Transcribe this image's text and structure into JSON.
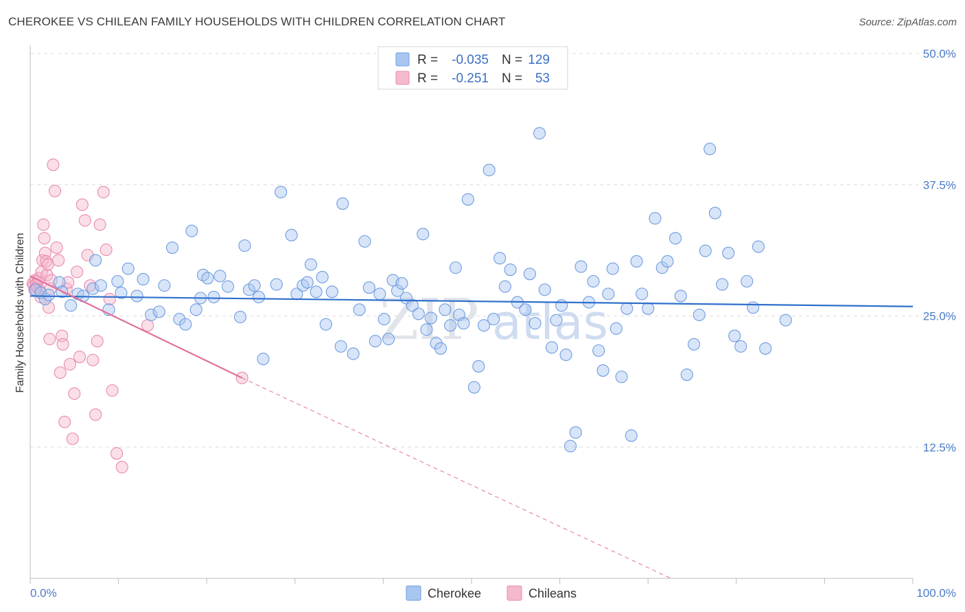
{
  "title": "CHEROKEE VS CHILEAN FAMILY HOUSEHOLDS WITH CHILDREN CORRELATION CHART",
  "source": "Source: ZipAtlas.com",
  "watermark": {
    "zip": "ZIP",
    "atlas": "atlas"
  },
  "chart_data": {
    "type": "scatter",
    "ylabel": "Family Households with Children",
    "xlabel": "",
    "xlim": [
      0,
      100
    ],
    "ylim": [
      0,
      50
    ],
    "x_tick_labels": {
      "min": "0.0%",
      "max": "100.0%"
    },
    "y_ticks": [
      {
        "value": 12.5,
        "label": "12.5%"
      },
      {
        "value": 25.0,
        "label": "25.0%"
      },
      {
        "value": 37.5,
        "label": "37.5%"
      },
      {
        "value": 50.0,
        "label": "50.0%"
      }
    ],
    "legend": {
      "r_label": "R =",
      "n_label": "N =",
      "entries": [
        {
          "name": "Cherokee",
          "r": "-0.035",
          "n": "129"
        },
        {
          "name": "Chileans",
          "r": "-0.251",
          "n": "53"
        }
      ]
    },
    "colors": {
      "cherokee_fill": "#a9c6f0",
      "cherokee_stroke": "#6f9ce0",
      "cherokee_line": "#2e6fcc",
      "chileans_fill": "#f5b9cf",
      "chileans_stroke": "#e98aad",
      "chileans_line": "#e0709a",
      "axis_label": "#4a7bc8",
      "grid": "#dcdcdc"
    },
    "series": [
      {
        "name": "Cherokee",
        "trend": {
          "x0": 0.0,
          "y0": 26.9,
          "x1": 100.0,
          "y1": 25.9
        },
        "points": [
          [
            0.6,
            27.5
          ],
          [
            1.2,
            27.2
          ],
          [
            1.7,
            26.6
          ],
          [
            2.1,
            27.0
          ],
          [
            3.3,
            28.2
          ],
          [
            3.6,
            27.3
          ],
          [
            4.6,
            26.0
          ],
          [
            5.4,
            27.1
          ],
          [
            6.0,
            26.9
          ],
          [
            7.1,
            27.6
          ],
          [
            7.4,
            30.3
          ],
          [
            8.0,
            27.9
          ],
          [
            8.9,
            25.6
          ],
          [
            9.9,
            28.3
          ],
          [
            10.3,
            27.2
          ],
          [
            11.1,
            29.5
          ],
          [
            12.1,
            26.9
          ],
          [
            12.8,
            28.5
          ],
          [
            13.7,
            25.1
          ],
          [
            14.6,
            25.4
          ],
          [
            15.2,
            27.9
          ],
          [
            16.1,
            31.5
          ],
          [
            16.9,
            24.7
          ],
          [
            17.6,
            24.2
          ],
          [
            18.3,
            33.1
          ],
          [
            18.8,
            25.6
          ],
          [
            19.3,
            26.7
          ],
          [
            19.6,
            28.9
          ],
          [
            20.1,
            28.6
          ],
          [
            20.8,
            26.8
          ],
          [
            21.5,
            28.8
          ],
          [
            22.4,
            27.8
          ],
          [
            23.8,
            24.9
          ],
          [
            24.3,
            31.7
          ],
          [
            24.8,
            27.5
          ],
          [
            25.4,
            27.9
          ],
          [
            25.9,
            26.8
          ],
          [
            26.4,
            20.9
          ],
          [
            27.9,
            28.0
          ],
          [
            28.4,
            36.8
          ],
          [
            29.6,
            32.7
          ],
          [
            30.2,
            27.1
          ],
          [
            30.9,
            27.9
          ],
          [
            31.4,
            28.2
          ],
          [
            31.8,
            29.9
          ],
          [
            32.4,
            27.3
          ],
          [
            33.1,
            28.7
          ],
          [
            33.5,
            24.2
          ],
          [
            34.2,
            27.3
          ],
          [
            35.2,
            22.1
          ],
          [
            35.4,
            35.7
          ],
          [
            36.6,
            21.4
          ],
          [
            37.3,
            25.6
          ],
          [
            37.9,
            32.1
          ],
          [
            38.4,
            27.7
          ],
          [
            39.1,
            22.6
          ],
          [
            39.6,
            27.1
          ],
          [
            40.1,
            24.7
          ],
          [
            40.6,
            22.8
          ],
          [
            41.1,
            28.4
          ],
          [
            41.6,
            27.4
          ],
          [
            42.1,
            28.1
          ],
          [
            42.6,
            26.7
          ],
          [
            43.3,
            26.0
          ],
          [
            44.0,
            25.2
          ],
          [
            44.5,
            32.8
          ],
          [
            44.9,
            23.7
          ],
          [
            45.4,
            24.8
          ],
          [
            46.0,
            22.4
          ],
          [
            46.5,
            21.9
          ],
          [
            47.0,
            25.6
          ],
          [
            47.6,
            24.1
          ],
          [
            48.2,
            29.6
          ],
          [
            48.6,
            25.1
          ],
          [
            49.1,
            24.3
          ],
          [
            49.6,
            36.1
          ],
          [
            50.3,
            18.2
          ],
          [
            50.8,
            20.2
          ],
          [
            51.4,
            24.1
          ],
          [
            52.0,
            38.9
          ],
          [
            52.5,
            24.7
          ],
          [
            53.2,
            30.5
          ],
          [
            53.8,
            27.8
          ],
          [
            54.4,
            29.4
          ],
          [
            55.2,
            26.3
          ],
          [
            56.1,
            25.6
          ],
          [
            56.6,
            29.0
          ],
          [
            57.2,
            24.3
          ],
          [
            57.7,
            42.4
          ],
          [
            58.3,
            27.5
          ],
          [
            59.1,
            22.0
          ],
          [
            59.6,
            24.6
          ],
          [
            60.2,
            26.0
          ],
          [
            60.7,
            21.3
          ],
          [
            61.2,
            12.6
          ],
          [
            61.8,
            13.9
          ],
          [
            62.4,
            29.7
          ],
          [
            63.3,
            26.3
          ],
          [
            63.8,
            28.3
          ],
          [
            64.4,
            21.7
          ],
          [
            64.9,
            19.8
          ],
          [
            65.5,
            27.1
          ],
          [
            66.0,
            29.5
          ],
          [
            66.4,
            23.8
          ],
          [
            67.0,
            19.2
          ],
          [
            67.6,
            25.7
          ],
          [
            68.1,
            13.6
          ],
          [
            68.7,
            30.2
          ],
          [
            69.3,
            27.1
          ],
          [
            70.0,
            25.7
          ],
          [
            70.8,
            34.3
          ],
          [
            71.6,
            29.6
          ],
          [
            72.2,
            30.2
          ],
          [
            73.1,
            32.4
          ],
          [
            73.7,
            26.9
          ],
          [
            74.4,
            19.4
          ],
          [
            75.2,
            22.3
          ],
          [
            75.8,
            25.1
          ],
          [
            76.5,
            31.2
          ],
          [
            77.0,
            40.9
          ],
          [
            77.6,
            34.8
          ],
          [
            78.4,
            28.0
          ],
          [
            79.1,
            31.0
          ],
          [
            79.8,
            23.1
          ],
          [
            80.5,
            22.1
          ],
          [
            81.2,
            28.3
          ],
          [
            81.9,
            25.8
          ],
          [
            82.5,
            31.6
          ],
          [
            83.3,
            21.9
          ],
          [
            85.6,
            24.6
          ]
        ]
      },
      {
        "name": "Chileans",
        "trend": {
          "x0": 0.0,
          "y0": 28.8,
          "x1": 24.0,
          "y1": 19.1
        },
        "trend_dashed": {
          "x0": 24.0,
          "y0": 19.1,
          "x1": 72.6,
          "y1": 0.0
        },
        "points": [
          [
            0.3,
            28.1
          ],
          [
            0.4,
            27.9
          ],
          [
            0.5,
            27.5
          ],
          [
            0.6,
            28.4
          ],
          [
            0.7,
            28.0
          ],
          [
            0.8,
            27.7
          ],
          [
            0.9,
            28.3
          ],
          [
            1.0,
            28.6
          ],
          [
            1.1,
            27.4
          ],
          [
            1.2,
            26.8
          ],
          [
            1.3,
            29.2
          ],
          [
            1.4,
            30.3
          ],
          [
            1.5,
            33.7
          ],
          [
            1.6,
            32.4
          ],
          [
            1.7,
            31.0
          ],
          [
            1.8,
            30.2
          ],
          [
            1.9,
            28.9
          ],
          [
            2.0,
            29.9
          ],
          [
            2.1,
            25.8
          ],
          [
            2.2,
            22.8
          ],
          [
            2.3,
            27.6
          ],
          [
            2.4,
            28.4
          ],
          [
            2.6,
            39.4
          ],
          [
            2.8,
            36.9
          ],
          [
            3.0,
            31.5
          ],
          [
            3.2,
            30.3
          ],
          [
            3.4,
            19.6
          ],
          [
            3.6,
            23.1
          ],
          [
            3.7,
            22.3
          ],
          [
            3.9,
            14.9
          ],
          [
            4.1,
            27.6
          ],
          [
            4.3,
            28.2
          ],
          [
            4.5,
            20.4
          ],
          [
            4.8,
            13.3
          ],
          [
            5.0,
            17.6
          ],
          [
            5.3,
            29.2
          ],
          [
            5.6,
            21.1
          ],
          [
            5.9,
            35.6
          ],
          [
            6.2,
            34.1
          ],
          [
            6.5,
            30.8
          ],
          [
            6.8,
            27.9
          ],
          [
            7.1,
            20.8
          ],
          [
            7.4,
            15.6
          ],
          [
            7.6,
            22.6
          ],
          [
            7.9,
            33.7
          ],
          [
            8.3,
            36.8
          ],
          [
            8.6,
            31.3
          ],
          [
            9.0,
            26.6
          ],
          [
            9.3,
            17.9
          ],
          [
            9.8,
            11.9
          ],
          [
            10.4,
            10.6
          ],
          [
            13.3,
            24.1
          ],
          [
            24.0,
            19.1
          ]
        ]
      }
    ]
  }
}
